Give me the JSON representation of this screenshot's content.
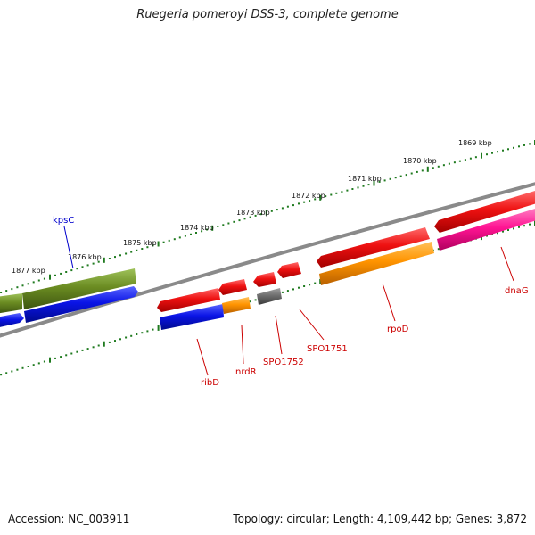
{
  "title": "Ruegeria pomeroyi DSS-3, complete genome",
  "footer": {
    "accession": "Accession: NC_003911",
    "summary": "Topology: circular; Length: 4,109,442 bp; Genes: 3,872"
  },
  "ticks": [
    "1869 kbp",
    "1870 kbp",
    "1871 kbp",
    "1872 kbp",
    "1873 kbp",
    "1874 kbp",
    "1875 kbp",
    "1876 kbp",
    "1877 kbp"
  ],
  "gene_labels": [
    {
      "name": "kpsC",
      "color": "#0000cc"
    },
    {
      "name": "ribD",
      "color": "#cc0000"
    },
    {
      "name": "nrdR",
      "color": "#cc0000"
    },
    {
      "name": "SPO1752",
      "color": "#cc0000"
    },
    {
      "name": "SPO1751",
      "color": "#cc0000"
    },
    {
      "name": "rpoD",
      "color": "#cc0000"
    },
    {
      "name": "dnaG",
      "color": "#cc0000"
    }
  ],
  "colors": {
    "red": "#e8141c",
    "blue": "#0a14e6",
    "olive": "#6b8c22",
    "orange": "#ff9400",
    "gray": "#6e6e6e",
    "pink": "#ff1493",
    "tick": "#1f7a1f",
    "backbone": "#8a8a8a"
  }
}
